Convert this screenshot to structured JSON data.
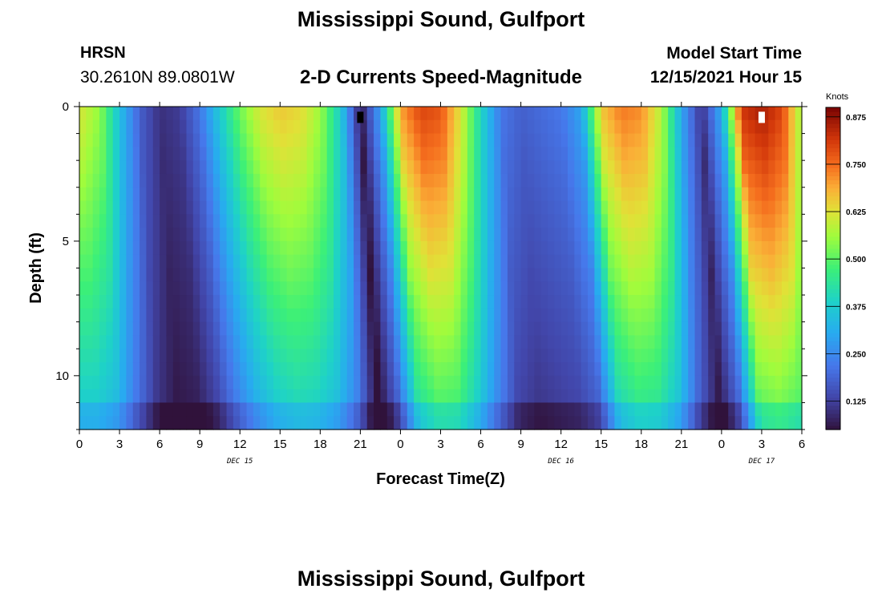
{
  "header": {
    "title": "Mississippi Sound, Gulfport",
    "station_id": "HRSN",
    "station_coords": "30.2610N  89.0801W",
    "subtitle": "2-D Currents Speed-Magnitude",
    "model_start_label": "Model Start Time",
    "model_start_value": "12/15/2021 Hour 15"
  },
  "footer": {
    "title_repeat": "Mississippi Sound, Gulfport"
  },
  "chart_data": {
    "type": "heatmap",
    "title": "2-D Currents Speed-Magnitude",
    "xlabel": "Forecast Time(Z)",
    "ylabel": "Depth (ft)",
    "x_start_hour_label": 0,
    "x_hours_total": 54,
    "x_tick_labels": [
      "0",
      "3",
      "6",
      "9",
      "12",
      "15",
      "18",
      "21",
      "0",
      "3",
      "6",
      "9",
      "12",
      "15",
      "18",
      "21",
      "0",
      "3",
      "6"
    ],
    "date_labels": [
      {
        "label": "DEC 15",
        "at_hour": 12
      },
      {
        "label": "DEC 16",
        "at_hour": 36
      },
      {
        "label": "DEC 17",
        "at_hour": 51
      }
    ],
    "y_range": [
      0,
      12
    ],
    "y_inverted": true,
    "y_tick_labels": [
      "0",
      "5",
      "10"
    ],
    "colorbar": {
      "title": "Knots",
      "range": [
        0.05,
        0.9
      ],
      "tick_labels": [
        "0.125",
        "0.250",
        "0.375",
        "0.500",
        "0.625",
        "0.750",
        "0.875"
      ]
    },
    "surface_speed_knots": [
      [
        0.0,
        0.62
      ],
      [
        1.5,
        0.55
      ],
      [
        3.0,
        0.35
      ],
      [
        4.5,
        0.18
      ],
      [
        6.0,
        0.1
      ],
      [
        7.5,
        0.12
      ],
      [
        9.0,
        0.22
      ],
      [
        10.5,
        0.38
      ],
      [
        12.0,
        0.52
      ],
      [
        13.5,
        0.62
      ],
      [
        15.0,
        0.66
      ],
      [
        16.5,
        0.64
      ],
      [
        18.0,
        0.56
      ],
      [
        19.5,
        0.38
      ],
      [
        21.0,
        0.06
      ],
      [
        22.5,
        0.3
      ],
      [
        24.0,
        0.7
      ],
      [
        25.5,
        0.8
      ],
      [
        27.0,
        0.78
      ],
      [
        28.5,
        0.62
      ],
      [
        30.0,
        0.4
      ],
      [
        31.5,
        0.22
      ],
      [
        33.0,
        0.18
      ],
      [
        34.5,
        0.2
      ],
      [
        36.0,
        0.22
      ],
      [
        37.5,
        0.3
      ],
      [
        39.0,
        0.66
      ],
      [
        40.5,
        0.74
      ],
      [
        42.0,
        0.72
      ],
      [
        43.5,
        0.58
      ],
      [
        45.0,
        0.3
      ],
      [
        46.5,
        0.1
      ],
      [
        48.0,
        0.32
      ],
      [
        49.5,
        0.82
      ],
      [
        51.0,
        0.86
      ],
      [
        52.5,
        0.8
      ],
      [
        54.0,
        0.55
      ]
    ],
    "missing_cells": [
      {
        "hour": 21.0,
        "depth": 0.4,
        "color": "#000000"
      },
      {
        "hour": 51.0,
        "depth": 0.4,
        "color": "#ffffff"
      }
    ]
  }
}
